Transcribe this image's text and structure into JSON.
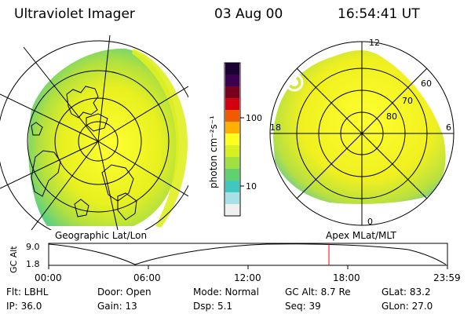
{
  "header": {
    "instrument": "Ultraviolet Imager",
    "date": "03 Aug 00",
    "time": "16:54:41 UT"
  },
  "left_panel": {
    "label": "Geographic Lat/Lon"
  },
  "right_panel": {
    "label": "Apex MLat/MLT",
    "mlt_labels": [
      "12",
      "18",
      "6",
      "0"
    ],
    "lat_labels": [
      "60",
      "70",
      "80"
    ]
  },
  "colorbar": {
    "unit": "photon cm⁻²s⁻¹",
    "ticks": [
      "100",
      "10"
    ],
    "scale": "log",
    "colors": [
      "#1a0033",
      "#3b0050",
      "#7a0020",
      "#d40010",
      "#f05a00",
      "#ffb000",
      "#ffff20",
      "#d8f020",
      "#a0e040",
      "#60d070",
      "#40c8c0",
      "#a8e0e8",
      "#f0f0f0"
    ]
  },
  "altitude_plot": {
    "ylabel": "GC Alt",
    "yticks": [
      "9.0",
      "1.8"
    ],
    "xticks": [
      "00:00",
      "06:00",
      "12:00",
      "18:00",
      "23:59"
    ],
    "marker_time": "16:54",
    "marker_color": "#ff0000"
  },
  "info": {
    "flt": "Flt: LBHL",
    "ip": "IP: 36.0",
    "door": "Door: Open",
    "gain": "Gain: 13",
    "mode": "Mode: Normal",
    "dsp": "Dsp:      5.1",
    "gc_alt": "GC Alt: 8.7 Re",
    "seq": "Seq: 39",
    "glat": "GLat:   83.2",
    "glon": "GLon:   27.0"
  }
}
